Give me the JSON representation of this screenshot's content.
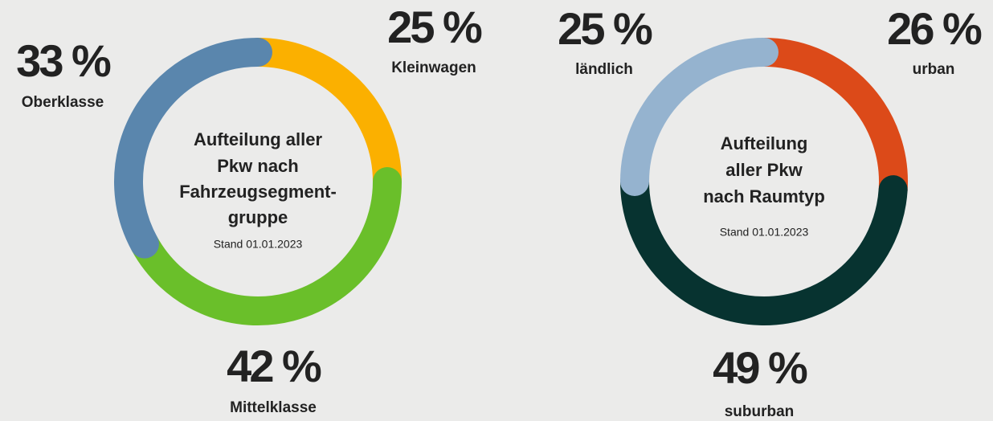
{
  "chart_data": [
    {
      "type": "pie",
      "title": [
        "Aufteilung aller",
        "Pkw nach",
        "Fahrzeugsegment-",
        "gruppe"
      ],
      "subtitle": "Stand 01.01.2023",
      "categories": [
        "Kleinwagen",
        "Mittelklasse",
        "Oberklasse"
      ],
      "values": [
        25,
        42,
        33
      ],
      "value_labels": [
        "25 %",
        "42 %",
        "33 %"
      ],
      "colors": [
        "#fbb000",
        "#6abf2a",
        "#5a86ad"
      ]
    },
    {
      "type": "pie",
      "title": [
        "Aufteilung",
        "aller Pkw",
        "nach Raumtyp"
      ],
      "subtitle": "Stand 01.01.2023",
      "categories": [
        "urban",
        "suburban",
        "ländlich"
      ],
      "values": [
        26,
        49,
        25
      ],
      "value_labels": [
        "26 %",
        "49 %",
        "25 %"
      ],
      "colors": [
        "#dc4a19",
        "#073330",
        "#95b3cf"
      ]
    }
  ]
}
